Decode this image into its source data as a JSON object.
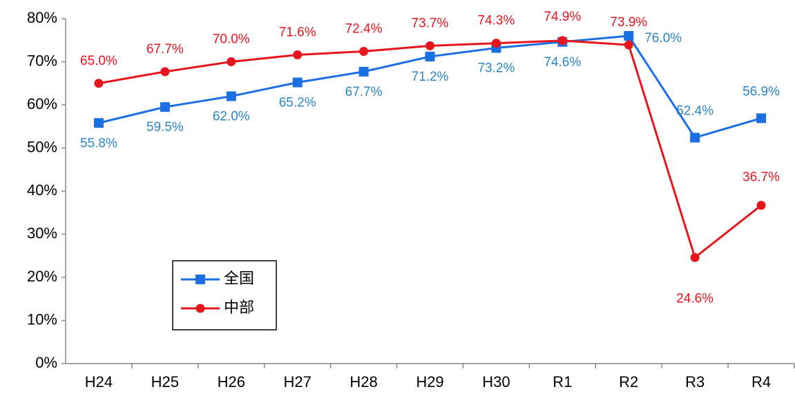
{
  "chart_data": {
    "type": "line",
    "categories": [
      "H24",
      "H25",
      "H26",
      "H27",
      "H28",
      "H29",
      "H30",
      "R1",
      "R2",
      "R3",
      "R4"
    ],
    "series": [
      {
        "name": "全国",
        "color": "#1c6fe3",
        "label_color": "#2a86c8",
        "marker": "square",
        "values": [
          55.8,
          59.5,
          62.0,
          65.2,
          67.7,
          71.2,
          73.2,
          74.6,
          76.0,
          52.4,
          56.9
        ],
        "value_labels": [
          "55.8%",
          "59.5%",
          "62.0%",
          "65.2%",
          "67.7%",
          "71.2%",
          "73.2%",
          "74.6%",
          "76.0%",
          "52.4%",
          "56.9%"
        ]
      },
      {
        "name": "中部",
        "color": "#e8141c",
        "label_color": "#e8141c",
        "marker": "circle",
        "values": [
          65.0,
          67.7,
          70.0,
          71.6,
          72.4,
          73.7,
          74.3,
          74.9,
          73.9,
          24.6,
          36.7
        ],
        "value_labels": [
          "65.0%",
          "67.7%",
          "70.0%",
          "71.6%",
          "72.4%",
          "73.7%",
          "74.3%",
          "74.9%",
          "73.9%",
          "24.6%",
          "36.7%"
        ]
      }
    ],
    "ylim": [
      0,
      80
    ],
    "yticks": [
      {
        "value": 0,
        "label": "0%"
      },
      {
        "value": 10,
        "label": "10%"
      },
      {
        "value": 20,
        "label": "20%"
      },
      {
        "value": 30,
        "label": "30%"
      },
      {
        "value": 40,
        "label": "40%"
      },
      {
        "value": 50,
        "label": "50%"
      },
      {
        "value": 60,
        "label": "60%"
      },
      {
        "value": 70,
        "label": "70%"
      },
      {
        "value": 80,
        "label": "80%"
      }
    ],
    "grid": false,
    "legend": "lower-left"
  }
}
